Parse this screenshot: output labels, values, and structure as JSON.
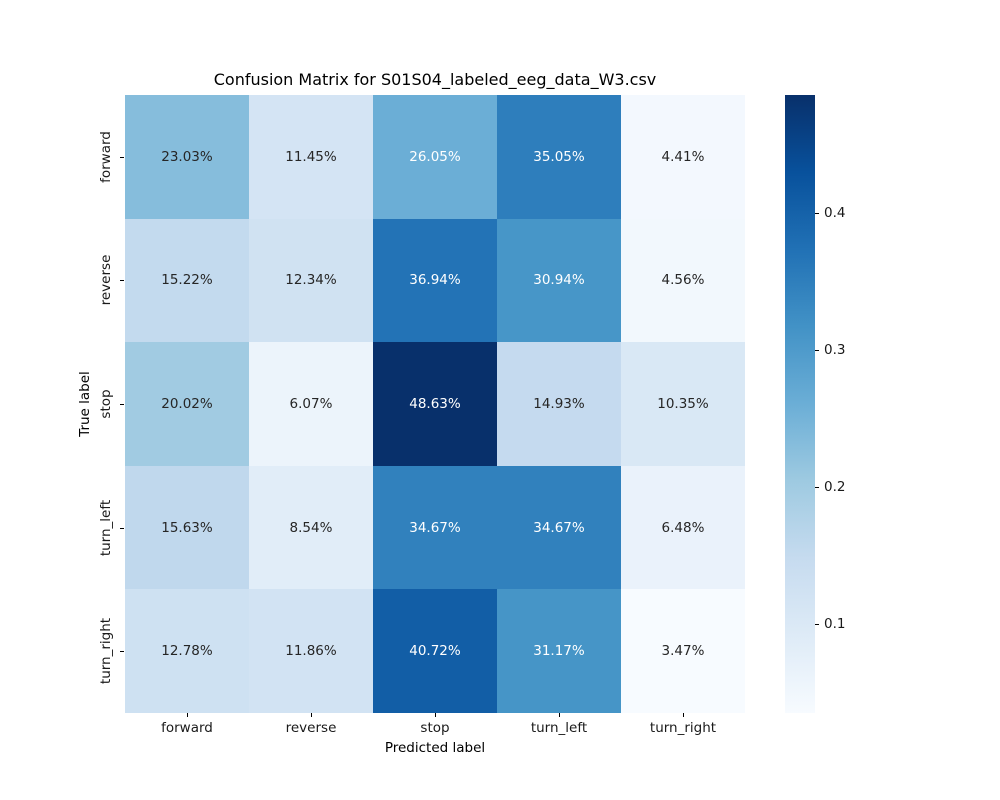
{
  "title": "Confusion Matrix for S01S04_labeled_eeg_data_W3.csv",
  "colors": {
    "background": "#ffffff",
    "annot_dark": "#262626",
    "annot_light": "#ffffff",
    "tick": "#000000",
    "colorbar_gradient": [
      "#08306b",
      "#08519c",
      "#2171b5",
      "#4292c6",
      "#6baed6",
      "#9ecae1",
      "#c6dbef",
      "#deebf7",
      "#f7fbff"
    ]
  },
  "chart_data": {
    "type": "heatmap",
    "title": "Confusion Matrix for S01S04_labeled_eeg_data_W3.csv",
    "xlabel": "Predicted label",
    "ylabel": "True label",
    "x_categories": [
      "forward",
      "reverse",
      "stop",
      "turn_left",
      "turn_right"
    ],
    "y_categories": [
      "forward",
      "reverse",
      "stop",
      "turn_left",
      "turn_right"
    ],
    "values_percent": [
      [
        23.03,
        11.45,
        26.05,
        35.05,
        4.41
      ],
      [
        15.22,
        12.34,
        36.94,
        30.94,
        4.56
      ],
      [
        20.02,
        6.07,
        48.63,
        14.93,
        10.35
      ],
      [
        15.63,
        8.54,
        34.67,
        34.67,
        6.48
      ],
      [
        12.78,
        11.86,
        40.72,
        31.17,
        3.47
      ]
    ],
    "cell_colors": [
      [
        "#86bddc",
        "#d4e4f4",
        "#6baed6",
        "#2e7ebc",
        "#f3f8fe"
      ],
      [
        "#c3daee",
        "#d0e2f2",
        "#2373b6",
        "#4796c8",
        "#f2f8fd"
      ],
      [
        "#a1cbe2",
        "#ecf4fb",
        "#08306b",
        "#c5daef",
        "#d9e8f5"
      ],
      [
        "#c0d8ed",
        "#e1edf8",
        "#3181bd",
        "#3181bd",
        "#eaf2fb"
      ],
      [
        "#cee1f2",
        "#d2e3f3",
        "#125ea6",
        "#4695c7",
        "#f7fbff"
      ]
    ],
    "cell_text_white": [
      [
        false,
        false,
        true,
        true,
        false
      ],
      [
        false,
        false,
        true,
        true,
        false
      ],
      [
        false,
        false,
        true,
        false,
        false
      ],
      [
        false,
        false,
        true,
        true,
        false
      ],
      [
        false,
        false,
        true,
        true,
        false
      ]
    ],
    "colormap": "Blues",
    "grid": false,
    "legend_position": "right-colorbar",
    "colorbar_ticks": [
      {
        "label": "0.4",
        "value": 0.4
      },
      {
        "label": "0.3",
        "value": 0.3
      },
      {
        "label": "0.2",
        "value": 0.2
      },
      {
        "label": "0.1",
        "value": 0.1
      }
    ],
    "colorbar_range": [
      0.0347,
      0.4863
    ]
  }
}
